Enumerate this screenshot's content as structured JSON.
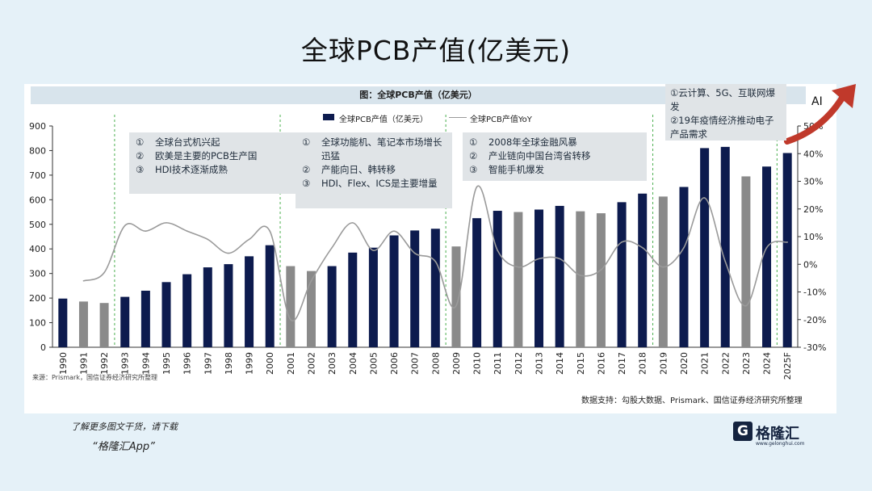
{
  "page_title": "全球PCB产值(亿美元)",
  "caption": "图：全球PCB产值（亿美元）",
  "legend": {
    "bar": "全球PCB产值（亿美元）",
    "line": "全球PCB产值YoY"
  },
  "annotations": [
    {
      "items": [
        {
          "num": "①",
          "text": "全球台式机兴起"
        },
        {
          "num": "②",
          "text": "欧美是主要的PCB生产国"
        },
        {
          "num": "③",
          "text": "HDI技术逐渐成熟"
        }
      ]
    },
    {
      "items": [
        {
          "num": "①",
          "text": "全球功能机、笔记本市场增长迅猛"
        },
        {
          "num": "②",
          "text": "产能向日、韩转移"
        },
        {
          "num": "③",
          "text": "HDI、Flex、ICS是主要增量"
        }
      ]
    },
    {
      "items": [
        {
          "num": "①",
          "text": "2008年全球金融风暴"
        },
        {
          "num": "②",
          "text": "产业链向中国台湾省转移"
        },
        {
          "num": "③",
          "text": "智能手机爆发"
        }
      ]
    }
  ],
  "annotation_top": [
    "①云计算、5G、互联网爆发",
    "②19年疫情经济推动电子产品需求"
  ],
  "ai_label": "AI",
  "source_left": "来源：Prismark，国信证券经济研究所整理",
  "source_right": "数据支持：勾股大数据、Prismark、国信证券经济研究所整理",
  "promo_line1": "了解更多图文干货，请下载",
  "promo_line2": "“格隆汇App”",
  "logo": {
    "mark": "G",
    "name": "格隆汇",
    "url": "www.gelonghui.com"
  },
  "chart_data": {
    "type": "bar",
    "categories": [
      "1990",
      "1991",
      "1992",
      "1993",
      "1994",
      "1995",
      "1996",
      "1997",
      "1998",
      "1999",
      "2000",
      "2001",
      "2002",
      "2003",
      "2004",
      "2005",
      "2006",
      "2007",
      "2008",
      "2009",
      "2010",
      "2011",
      "2012",
      "2013",
      "2014",
      "2015",
      "2016",
      "2017",
      "2018",
      "2019",
      "2020",
      "2021",
      "2022",
      "2023",
      "2024",
      "2025F"
    ],
    "series": [
      {
        "name": "全球PCB产值（亿美元）",
        "type": "bar",
        "axis": "left",
        "values": [
          198,
          186,
          180,
          205,
          230,
          265,
          297,
          325,
          338,
          370,
          415,
          330,
          310,
          330,
          385,
          405,
          455,
          475,
          482,
          410,
          525,
          555,
          550,
          560,
          575,
          553,
          545,
          590,
          625,
          613,
          652,
          810,
          815,
          695,
          735,
          790
        ],
        "colors": [
          "#0d1b4e",
          "#8a8a8a",
          "#8a8a8a",
          "#0d1b4e",
          "#0d1b4e",
          "#0d1b4e",
          "#0d1b4e",
          "#0d1b4e",
          "#0d1b4e",
          "#0d1b4e",
          "#0d1b4e",
          "#8a8a8a",
          "#8a8a8a",
          "#0d1b4e",
          "#0d1b4e",
          "#0d1b4e",
          "#0d1b4e",
          "#0d1b4e",
          "#0d1b4e",
          "#8a8a8a",
          "#0d1b4e",
          "#0d1b4e",
          "#8a8a8a",
          "#0d1b4e",
          "#0d1b4e",
          "#8a8a8a",
          "#8a8a8a",
          "#0d1b4e",
          "#0d1b4e",
          "#8a8a8a",
          "#0d1b4e",
          "#0d1b4e",
          "#0d1b4e",
          "#8a8a8a",
          "#0d1b4e",
          "#0d1b4e"
        ]
      },
      {
        "name": "全球PCB产值YoY",
        "type": "line",
        "axis": "right",
        "values": [
          null,
          -6,
          -3,
          14,
          12,
          15,
          12,
          9,
          4,
          9,
          12,
          -20,
          -6,
          6,
          15,
          5,
          12,
          4,
          1,
          -15,
          28,
          5,
          -1,
          2,
          2,
          -4,
          -2,
          8,
          6,
          -1,
          6,
          24,
          1,
          -15,
          6,
          8
        ]
      }
    ],
    "y_left": {
      "min": 0,
      "max": 900,
      "ticks": [
        0,
        100,
        200,
        300,
        400,
        500,
        600,
        700,
        800,
        900
      ]
    },
    "y_right": {
      "min": -30,
      "max": 50,
      "ticks": [
        "-30%",
        "-20%",
        "-10%",
        "0%",
        "10%",
        "20%",
        "30%",
        "40%",
        "50%"
      ]
    },
    "dividers_after": [
      "1992",
      "2000",
      "2008",
      "2018",
      "2024"
    ],
    "colors": {
      "bar_primary": "#0d1b4e",
      "bar_secondary": "#8a8a8a",
      "line": "#9a9a9a",
      "divider": "#4caf50"
    }
  }
}
